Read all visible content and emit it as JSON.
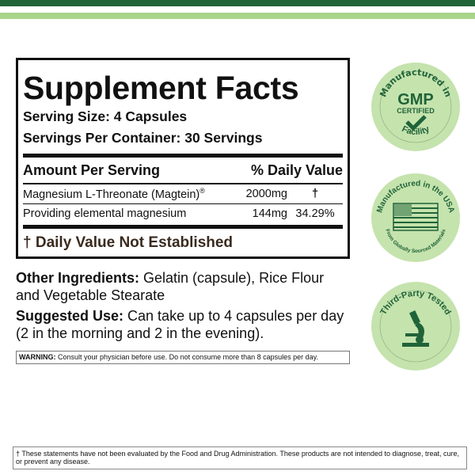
{
  "facts": {
    "title": "Supplement Facts",
    "serving_size": "Serving Size: 4 Capsules",
    "servings_per_container": "Servings Per Container:  30 Servings",
    "header_amount": "Amount Per Serving",
    "header_dv": "% Daily Value",
    "rows": [
      {
        "name": "Magnesium L-Threonate (Magtein)",
        "sup": "®",
        "amount": "2000mg",
        "dv": "†"
      },
      {
        "name": "Providing elemental magnesium",
        "amount": "144mg",
        "dv": "34.29%"
      }
    ],
    "dv_note": "† Daily Value Not Established"
  },
  "other": {
    "label": "Other Ingredients:",
    "text": " Gelatin (capsule), Rice Flour and Vegetable Stearate"
  },
  "use": {
    "label": "Suggested Use:",
    "text": " Can take up to 4 capsules per day (2 in the morning and 2 in the evening)."
  },
  "warning": {
    "label": "WARNING:",
    "text": " Consult your physician before use. Do not consume more than 8 capsules per day."
  },
  "disclaimer": "† These statements have not been evaluated by the Food and Drug Administration. These products are not intended to diagnose, treat, cure, or prevent any disease.",
  "badges": [
    {
      "top": "Manufactured in",
      "main": "GMP",
      "sub": "CERTIFIED",
      "bottom": "Facility",
      "icon": "checkmark-icon"
    },
    {
      "top": "Manufactured in the USA",
      "bottom": "From Globally Sourced Materials",
      "icon": "us-flag-icon"
    },
    {
      "top": "Third-Party Tested",
      "icon": "microscope-icon"
    }
  ],
  "colors": {
    "dark_green": "#206339",
    "light_green": "#c5e3ad",
    "bar_light": "#a9d48c"
  }
}
